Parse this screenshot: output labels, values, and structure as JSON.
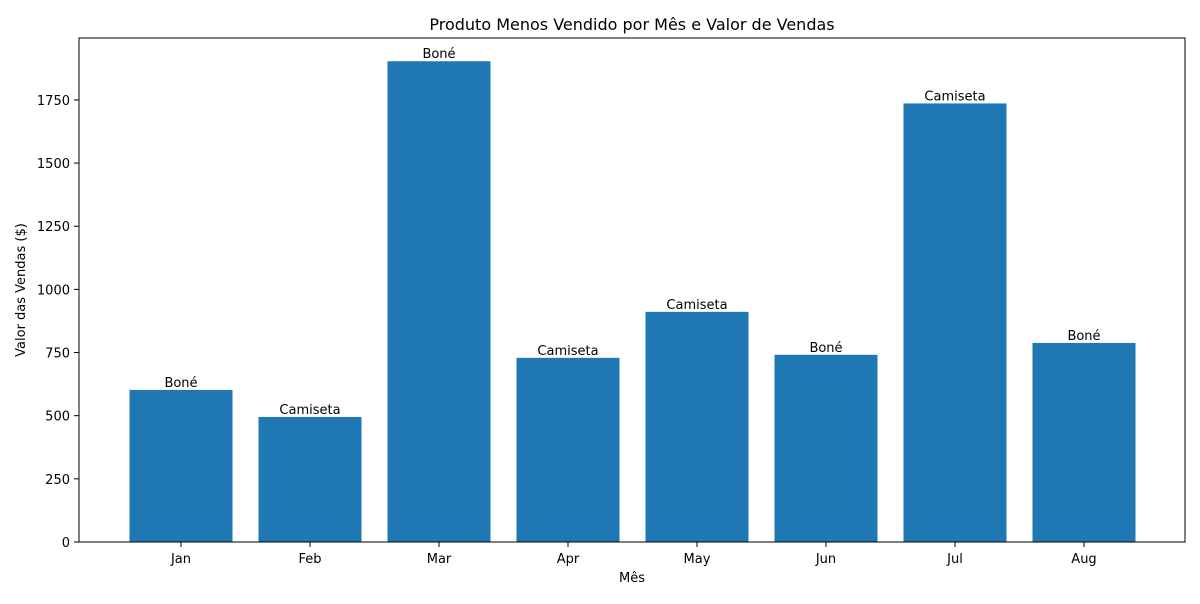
{
  "chart_data": {
    "type": "bar",
    "title": "Produto Menos Vendido por Mês e Valor de Vendas",
    "xlabel": "Mês",
    "ylabel": "Valor das Vendas ($)",
    "categories": [
      "Jan",
      "Feb",
      "Mar",
      "Apr",
      "May",
      "Jun",
      "Jul",
      "Aug"
    ],
    "values": [
      602,
      495,
      1903,
      729,
      911,
      741,
      1736,
      788
    ],
    "bar_labels": [
      "Boné",
      "Camiseta",
      "Boné",
      "Camiseta",
      "Camiseta",
      "Boné",
      "Camiseta",
      "Boné"
    ],
    "ylim": [
      0,
      2000
    ],
    "yticks": [
      0,
      250,
      500,
      750,
      1000,
      1250,
      1500,
      1750
    ],
    "grid": false,
    "bar_color": "#1f77b4"
  }
}
